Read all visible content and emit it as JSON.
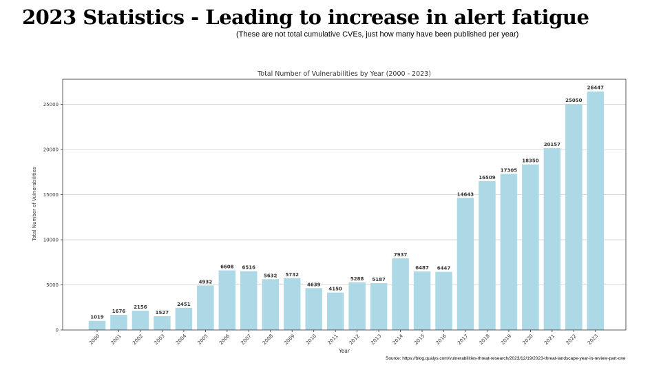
{
  "slide": {
    "title": "2023 Statistics - Leading to increase in alert fatigue",
    "subtitle": "(These are not total cumulative CVEs, just how many have been published per year)",
    "source": "Source: https://blog.qualys.com/vulnerabilities-threat-research/2023/12/19/2023-threat-landscape-year-in-review-part-one"
  },
  "chart_data": {
    "type": "bar",
    "title": "Total Number of Vulnerabilities by Year (2000 - 2023)",
    "xlabel": "Year",
    "ylabel": "Total Number of Vulnerabilities",
    "categories": [
      "2000",
      "2001",
      "2002",
      "2003",
      "2004",
      "2005",
      "2006",
      "2007",
      "2008",
      "2009",
      "2010",
      "2011",
      "2012",
      "2013",
      "2014",
      "2015",
      "2016",
      "2017",
      "2018",
      "2019",
      "2020",
      "2021",
      "2022",
      "2023"
    ],
    "values": [
      1019,
      1676,
      2156,
      1527,
      2451,
      4932,
      6608,
      6516,
      5632,
      5732,
      4639,
      4150,
      5288,
      5187,
      7937,
      6487,
      6447,
      14643,
      16509,
      17305,
      18350,
      20157,
      25050,
      26447
    ],
    "yticks": [
      0,
      5000,
      10000,
      15000,
      20000,
      25000
    ],
    "ylim": [
      0,
      27800
    ],
    "grid": "y",
    "bar_color": "#add8e6",
    "grid_color": "#cfcfcf"
  }
}
